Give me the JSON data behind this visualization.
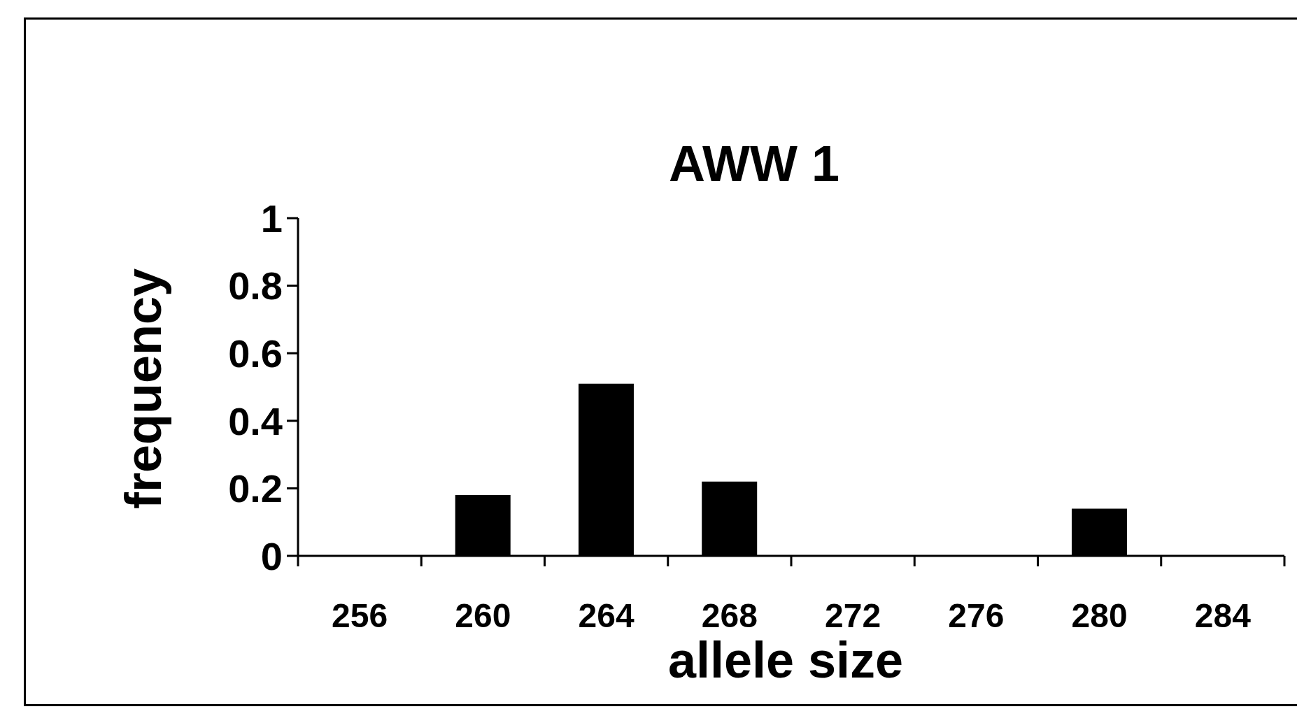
{
  "chart_data": {
    "type": "bar",
    "title": "AWW 1",
    "xlabel": "allele size",
    "ylabel": "frequency",
    "categories": [
      "256",
      "260",
      "264",
      "268",
      "272",
      "276",
      "280",
      "284"
    ],
    "values": [
      0,
      0.18,
      0.51,
      0.22,
      0,
      0,
      0.14,
      0
    ],
    "color": "#000000",
    "ylim": [
      0,
      1
    ],
    "yticks": [
      0,
      0.2,
      0.4,
      0.6,
      0.8,
      1
    ]
  }
}
